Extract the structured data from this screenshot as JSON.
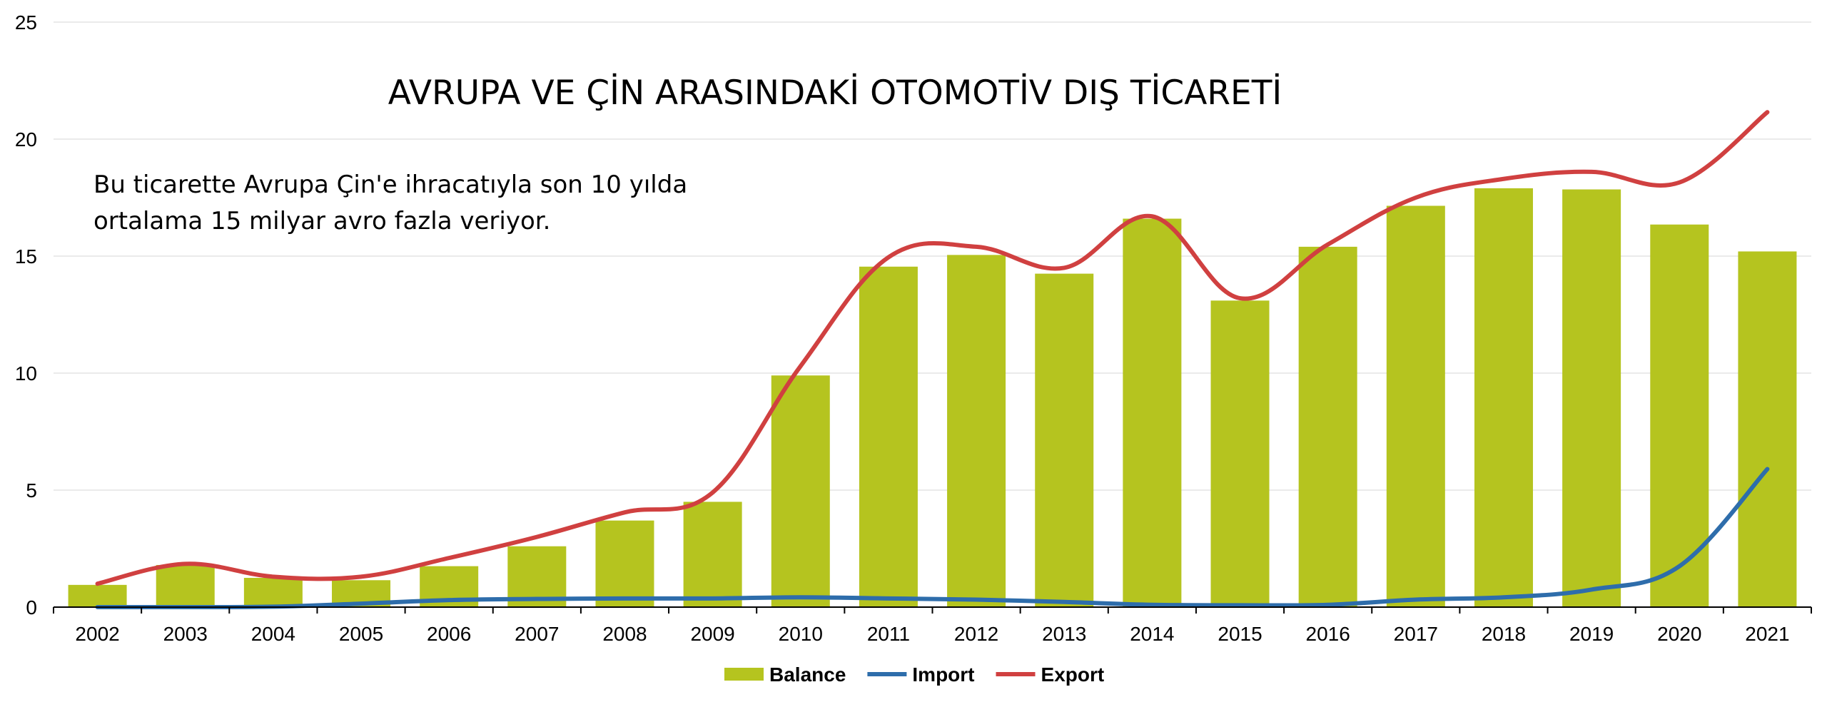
{
  "chart_data": {
    "type": "bar",
    "title": "AVRUPA VE ÇİN ARASINDAKİ OTOMOTİV DIŞ TİCARETİ",
    "annotation": [
      "Bu ticarette Avrupa Çin'e ihracatıyla son 10 yılda",
      "ortalama 15 milyar avro fazla veriyor."
    ],
    "categories": [
      "2002",
      "2003",
      "2004",
      "2005",
      "2006",
      "2007",
      "2008",
      "2009",
      "2010",
      "2011",
      "2012",
      "2013",
      "2014",
      "2015",
      "2016",
      "2017",
      "2018",
      "2019",
      "2020",
      "2021"
    ],
    "series": [
      {
        "name": "Balance",
        "type": "bar",
        "color": "#b5c41f",
        "values": [
          0.95,
          1.8,
          1.25,
          1.15,
          1.75,
          2.6,
          3.7,
          4.5,
          9.9,
          14.55,
          15.05,
          14.25,
          16.6,
          13.1,
          15.4,
          17.15,
          17.9,
          17.85,
          16.35,
          15.2
        ]
      },
      {
        "name": "Import",
        "type": "line",
        "color": "#2e6dab",
        "values": [
          0.0,
          0.0,
          0.02,
          0.15,
          0.3,
          0.35,
          0.37,
          0.37,
          0.42,
          0.37,
          0.32,
          0.22,
          0.1,
          0.08,
          0.1,
          0.32,
          0.42,
          0.75,
          1.75,
          5.9
        ]
      },
      {
        "name": "Export",
        "type": "line",
        "color": "#d04040",
        "values": [
          1.0,
          1.85,
          1.3,
          1.3,
          2.1,
          3.0,
          4.05,
          4.9,
          10.3,
          14.95,
          15.4,
          14.5,
          16.7,
          13.2,
          15.5,
          17.5,
          18.3,
          18.6,
          18.15,
          21.15
        ]
      }
    ],
    "y_axis": {
      "min": 0,
      "max": 25,
      "ticks": [
        0,
        5,
        10,
        15,
        20,
        25
      ]
    },
    "grid": true,
    "legend": {
      "position": "bottom-center"
    }
  }
}
